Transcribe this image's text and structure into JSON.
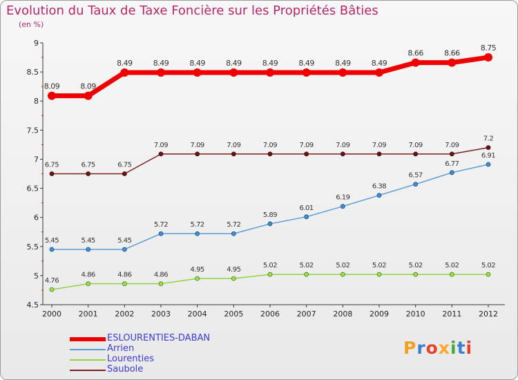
{
  "title": "Evolution du Taux de Taxe Foncière sur les Propriétés Bâties",
  "subtitle": "(en %)",
  "logo_text": "Proxiti",
  "colors": {
    "title": "#b4266a",
    "legend_text": "#3a3ad8",
    "ESLOURENTIES-DABAN": "#ee0000",
    "Arrien": "#5b9bd5",
    "Lourenties": "#8ed23f",
    "Saubole": "#7a1e22"
  },
  "chart_data": {
    "type": "line",
    "title": "Evolution du Taux de Taxe Foncière sur les Propriétés Bâties",
    "ylabel": "(en %)",
    "xlabel": "",
    "ylim": [
      4.5,
      9
    ],
    "yticks": [
      "4.5",
      "5",
      "5.5",
      "6",
      "6.5",
      "7",
      "7.5",
      "8",
      "8.5",
      "9"
    ],
    "x": [
      "2000",
      "2001",
      "2002",
      "2003",
      "2004",
      "2005",
      "2006",
      "2007",
      "2008",
      "2009",
      "2010",
      "2011",
      "2012"
    ],
    "grid": false,
    "legend_position": "bottom-left",
    "series": [
      {
        "name": "ESLOURENTIES-DABAN",
        "values": [
          8.09,
          8.09,
          8.49,
          8.49,
          8.49,
          8.49,
          8.49,
          8.49,
          8.49,
          8.49,
          8.66,
          8.66,
          8.75
        ],
        "labels": [
          "8.09",
          "8.09",
          "8.49",
          "8.49",
          "8.49",
          "8.49",
          "8.49",
          "8.49",
          "8.49",
          "8.49",
          "8.66",
          "8.66",
          "8.75"
        ]
      },
      {
        "name": "Arrien",
        "values": [
          5.45,
          5.45,
          5.45,
          5.72,
          5.72,
          5.72,
          5.89,
          6.01,
          6.19,
          6.38,
          6.57,
          6.77,
          6.91
        ],
        "labels": [
          "5.45",
          "5.45",
          "5.45",
          "5.72",
          "5.72",
          "5.72",
          "5.89",
          "6.01",
          "6.19",
          "6.38",
          "6.57",
          "6.77",
          "6.91"
        ]
      },
      {
        "name": "Lourenties",
        "values": [
          4.76,
          4.86,
          4.86,
          4.86,
          4.95,
          4.95,
          5.02,
          5.02,
          5.02,
          5.02,
          5.02,
          5.02,
          5.02
        ],
        "labels": [
          "4.76",
          "4.86",
          "4.86",
          "4.86",
          "4.95",
          "4.95",
          "5.02",
          "5.02",
          "5.02",
          "5.02",
          "5.02",
          "5.02",
          "5.02"
        ]
      },
      {
        "name": "Saubole",
        "values": [
          6.75,
          6.75,
          6.75,
          7.09,
          7.09,
          7.09,
          7.09,
          7.09,
          7.09,
          7.09,
          7.09,
          7.09,
          7.2
        ],
        "labels": [
          "6.75",
          "6.75",
          "6.75",
          "7.09",
          "7.09",
          "7.09",
          "7.09",
          "7.09",
          "7.09",
          "7.09",
          "7.09",
          "7.09",
          "7.2"
        ]
      }
    ]
  }
}
